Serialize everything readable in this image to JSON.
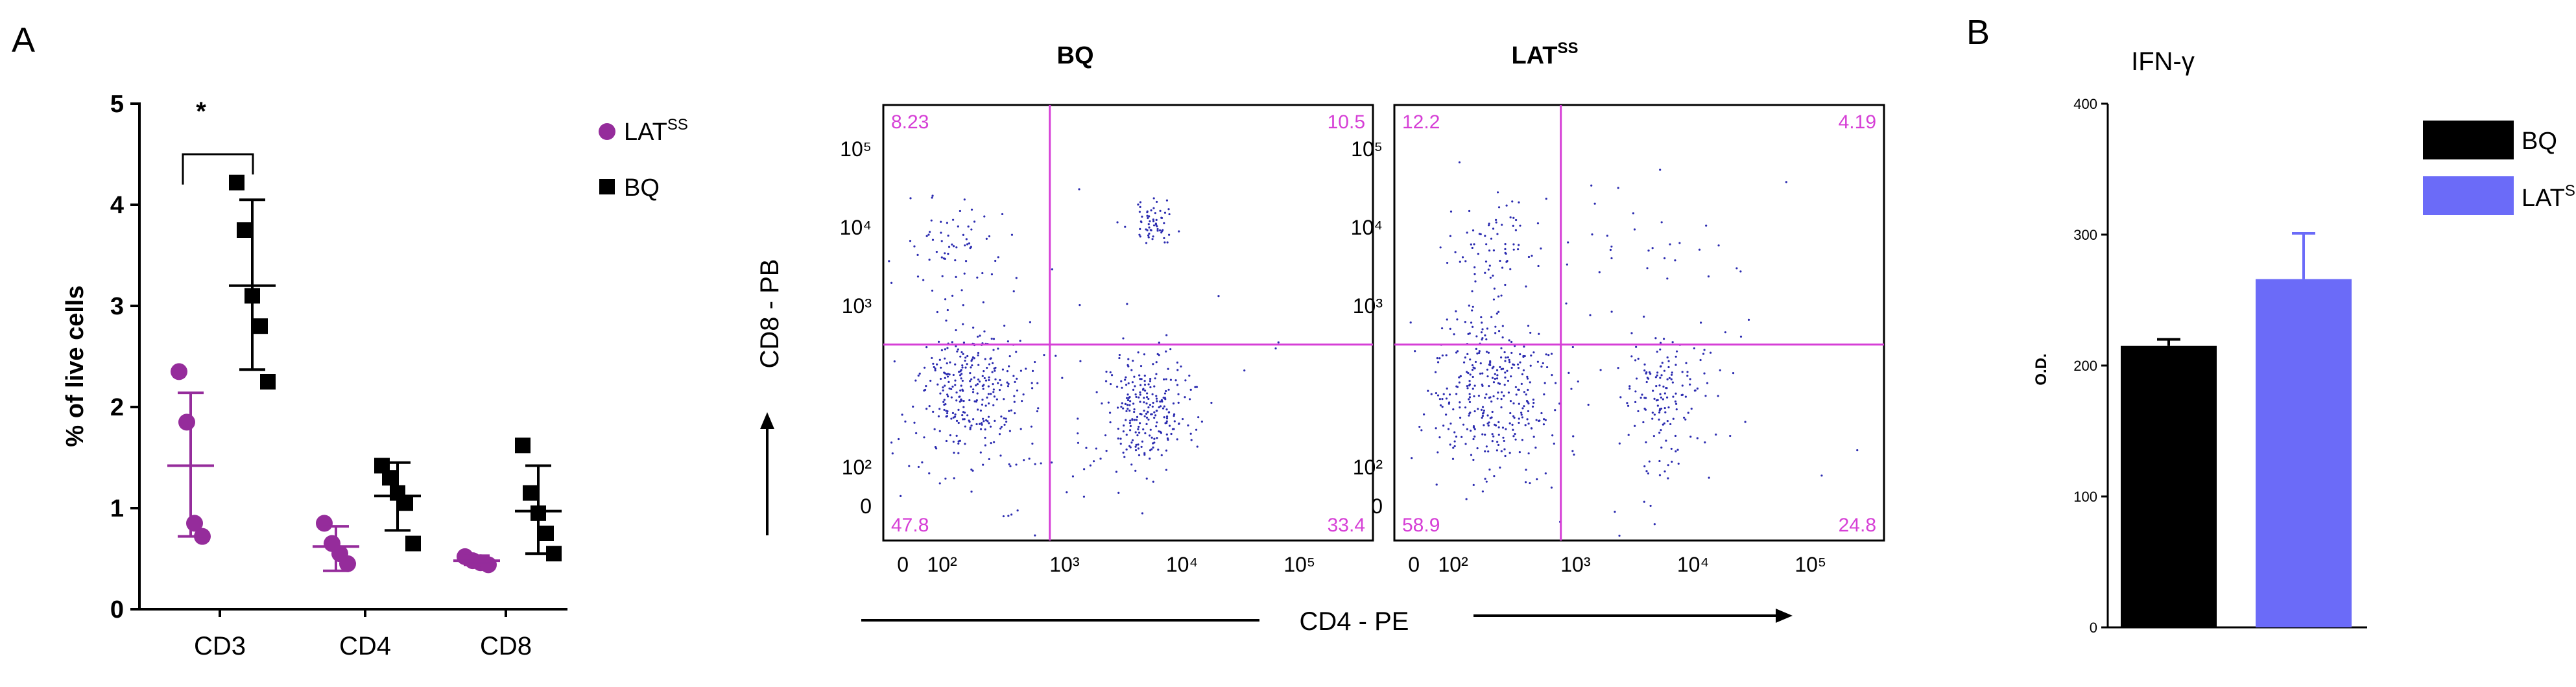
{
  "panel_labels": {
    "a": "A",
    "b": "B"
  },
  "colors": {
    "purple": "#952c9b",
    "black": "#000000",
    "gate": "#d63fd6",
    "dots": "#2b2bb0",
    "blue_bar": "#6b6bf8"
  },
  "chart_data": [
    {
      "type": "scatter",
      "ylabel": "% of live cells",
      "ylim": [
        0,
        5
      ],
      "yticks": [
        "0",
        "1",
        "2",
        "3",
        "4",
        "5"
      ],
      "categories": [
        "CD3",
        "CD4",
        "CD8"
      ],
      "significance": "*",
      "legend": [
        {
          "label": "LAT",
          "sup": "SS",
          "color": "#952c9b",
          "marker": "circle"
        },
        {
          "label": "BQ",
          "sup": "",
          "color": "#000000",
          "marker": "square"
        }
      ],
      "series": [
        {
          "name": "LATSS",
          "color": "#952c9b",
          "marker": "circle",
          "points": [
            [
              2.35,
              1.85,
              0.85,
              0.72
            ],
            [
              0.85,
              0.65,
              0.55,
              0.45
            ],
            [
              0.52,
              0.48,
              0.46,
              0.44
            ]
          ],
          "mean": [
            1.42,
            0.62,
            0.48
          ],
          "sd_low": [
            0.72,
            0.38,
            0.44
          ],
          "sd_high": [
            2.14,
            0.82,
            0.53
          ]
        },
        {
          "name": "BQ",
          "color": "#000000",
          "marker": "square",
          "points": [
            [
              4.22,
              3.75,
              3.1,
              2.8,
              2.25
            ],
            [
              1.42,
              1.3,
              1.15,
              1.05,
              0.65
            ],
            [
              1.62,
              1.15,
              0.95,
              0.75,
              0.55
            ]
          ],
          "mean": [
            3.2,
            1.12,
            0.97
          ],
          "sd_low": [
            2.37,
            0.78,
            0.55
          ],
          "sd_high": [
            4.05,
            1.45,
            1.42
          ]
        }
      ]
    },
    {
      "type": "scatter",
      "title": "BQ",
      "xticks": [
        "0",
        "10²",
        "10³",
        "10⁴",
        "10⁵"
      ],
      "yticks": [
        "0",
        "10²",
        "10³",
        "10⁴",
        "10⁵"
      ],
      "quadrants": {
        "upper_left": "8.23",
        "upper_right": "10.5",
        "lower_left": "47.8",
        "lower_right": "33.4"
      },
      "clusters": [
        {
          "cx": 0.18,
          "cy": 0.34,
          "sx": 0.055,
          "sy": 0.08,
          "n": 300
        },
        {
          "cx": 0.54,
          "cy": 0.3,
          "sx": 0.05,
          "sy": 0.07,
          "n": 240
        },
        {
          "cx": 0.55,
          "cy": 0.73,
          "sx": 0.022,
          "sy": 0.024,
          "n": 60
        },
        {
          "cx": 0.15,
          "cy": 0.68,
          "sx": 0.05,
          "sy": 0.06,
          "n": 60
        },
        {
          "cx": 0.3,
          "cy": 0.3,
          "sx": 0.22,
          "sy": 0.22,
          "n": 80
        }
      ]
    },
    {
      "type": "scatter",
      "title": "LAT",
      "title_sup": "SS",
      "xticks": [
        "0",
        "10²",
        "10³",
        "10⁴",
        "10⁵"
      ],
      "yticks": [
        "0",
        "10²",
        "10³",
        "10⁴",
        "10⁵"
      ],
      "quadrants": {
        "upper_left": "12.2",
        "upper_right": "4.19",
        "lower_left": "58.9",
        "lower_right": "24.8"
      },
      "clusters": [
        {
          "cx": 0.2,
          "cy": 0.34,
          "sx": 0.065,
          "sy": 0.09,
          "n": 330
        },
        {
          "cx": 0.55,
          "cy": 0.32,
          "sx": 0.05,
          "sy": 0.08,
          "n": 150
        },
        {
          "cx": 0.2,
          "cy": 0.68,
          "sx": 0.05,
          "sy": 0.06,
          "n": 70
        },
        {
          "cx": 0.55,
          "cy": 0.7,
          "sx": 0.1,
          "sy": 0.06,
          "n": 25
        },
        {
          "cx": 0.32,
          "cy": 0.3,
          "sx": 0.22,
          "sy": 0.22,
          "n": 70
        }
      ]
    },
    {
      "type": "bar",
      "title": "IFN-γ",
      "ylabel": "O.D.",
      "ylim": [
        0,
        400
      ],
      "yticks": [
        "0",
        "100",
        "200",
        "300",
        "400"
      ],
      "categories": [
        "BQ",
        "LATSS"
      ],
      "legend": [
        {
          "label": "BQ",
          "sup": "",
          "color": "#000000"
        },
        {
          "label": "LAT",
          "sup": "SS",
          "color": "#6b6bf8"
        }
      ],
      "values": [
        215,
        266
      ],
      "errors": [
        5,
        35
      ],
      "colors": [
        "#000000",
        "#6b6bf8"
      ]
    }
  ],
  "axis_text": {
    "flow_y": "CD8 - PB",
    "flow_x": "CD4 - PE"
  }
}
